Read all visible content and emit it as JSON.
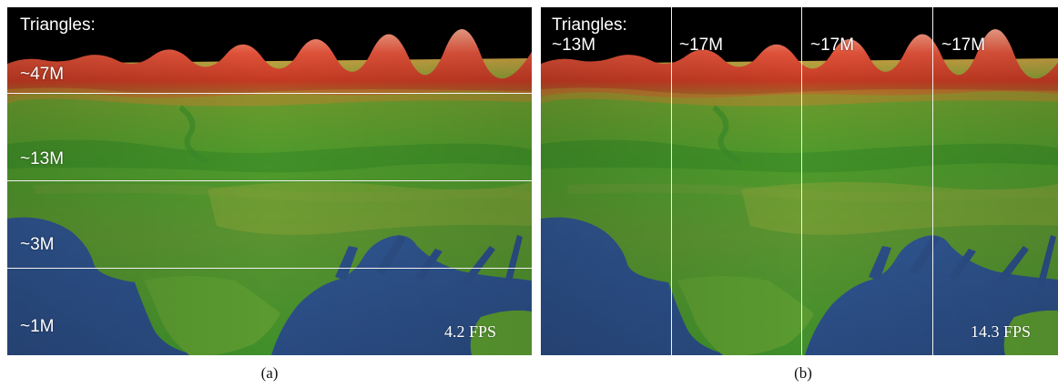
{
  "panel_a": {
    "title": "Triangles:",
    "bands": [
      "~47M",
      "~13M",
      "~3M",
      "~1M"
    ],
    "fps_value": "4.2",
    "fps_unit": "FPS",
    "caption": "(a)"
  },
  "panel_b": {
    "title": "Triangles:",
    "columns": [
      "~13M",
      "~17M",
      "~17M",
      "~17M"
    ],
    "fps_value": "14.3",
    "fps_unit": "FPS",
    "caption": "(b)"
  },
  "colors": {
    "sky": "#000000",
    "mountains": "#d9462b",
    "land": "#4e9a2c",
    "water": "#2c4e86",
    "grid_line": "#f2f2f2"
  }
}
